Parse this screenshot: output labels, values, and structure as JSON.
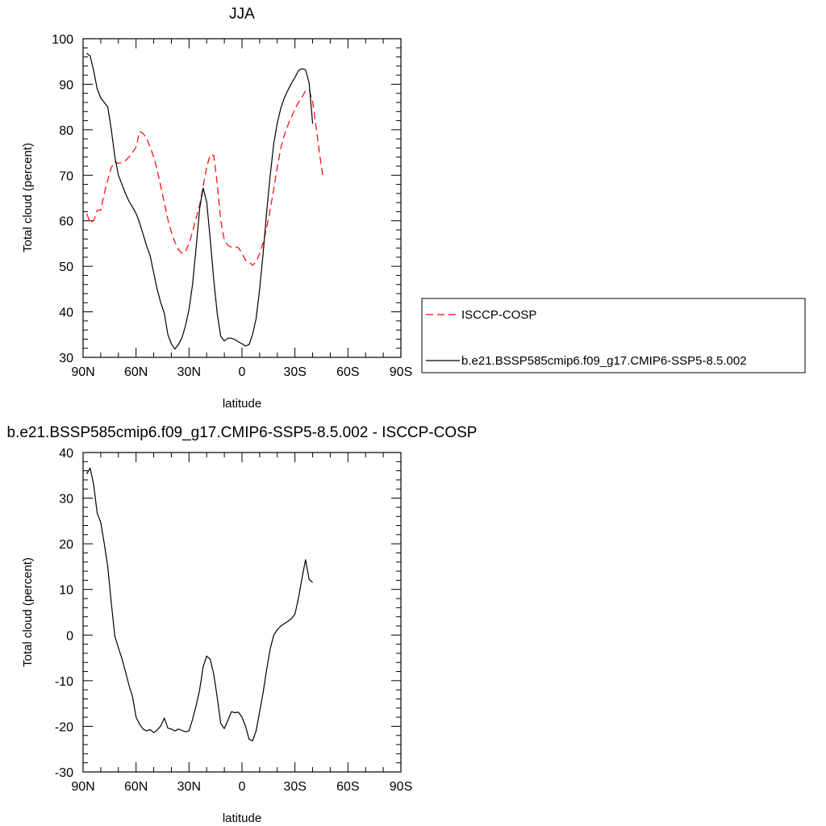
{
  "chart_data": [
    {
      "type": "line",
      "title": "JJA",
      "xlabel": "latitude",
      "ylabel": "Total cloud (percent)",
      "xlim": [
        90,
        -90
      ],
      "ylim": [
        30,
        100
      ],
      "x_ticks": [
        90,
        60,
        30,
        0,
        -30,
        -60,
        -90
      ],
      "x_tick_labels": [
        "90N",
        "60N",
        "30N",
        "0",
        "30S",
        "60S",
        "90S"
      ],
      "y_ticks": [
        30,
        40,
        50,
        60,
        70,
        80,
        90,
        100
      ],
      "y_tick_labels": [
        "30",
        "40",
        "50",
        "60",
        "70",
        "80",
        "90",
        "100"
      ],
      "grid": false,
      "legend_placement": "right",
      "series": [
        {
          "name": "ISCCP-COSP",
          "color": "#ff0000",
          "dash": "dashed",
          "points": [
            [
              88,
              61.6
            ],
            [
              86,
              59.6
            ],
            [
              84,
              60
            ],
            [
              82,
              62.3
            ],
            [
              80,
              62.3
            ],
            [
              78,
              66
            ],
            [
              76,
              69
            ],
            [
              74,
              71.7
            ],
            [
              72,
              73
            ],
            [
              70,
              72.6
            ],
            [
              68,
              72.8
            ],
            [
              66,
              73.2
            ],
            [
              64,
              74
            ],
            [
              62,
              75
            ],
            [
              60,
              76.2
            ],
            [
              58,
              79.6
            ],
            [
              56,
              79.2
            ],
            [
              54,
              78.1
            ],
            [
              52,
              76.2
            ],
            [
              50,
              74
            ],
            [
              48,
              71.2
            ],
            [
              46,
              67.5
            ],
            [
              44,
              64
            ],
            [
              42,
              60.3
            ],
            [
              40,
              57.5
            ],
            [
              38,
              55.3
            ],
            [
              36,
              53.7
            ],
            [
              34,
              52.8
            ],
            [
              32,
              53.3
            ],
            [
              30,
              55
            ],
            [
              28,
              57.6
            ],
            [
              26,
              60.5
            ],
            [
              24,
              63.5
            ],
            [
              22,
              67.5
            ],
            [
              20,
              71.8
            ],
            [
              18,
              74.5
            ],
            [
              16,
              74.4
            ],
            [
              14,
              68
            ],
            [
              12,
              60
            ],
            [
              10,
              55.8
            ],
            [
              8,
              54.6
            ],
            [
              6,
              54.2
            ],
            [
              4,
              54.2
            ],
            [
              2,
              54.1
            ],
            [
              0,
              52.9
            ],
            [
              -2,
              51.3
            ],
            [
              -4,
              51
            ],
            [
              -6,
              50.2
            ],
            [
              -8,
              51
            ],
            [
              -10,
              52.8
            ],
            [
              -12,
              55.2
            ],
            [
              -14,
              58.5
            ],
            [
              -16,
              62.5
            ],
            [
              -18,
              67
            ],
            [
              -20,
              71.8
            ],
            [
              -22,
              76
            ],
            [
              -24,
              78.8
            ],
            [
              -26,
              81
            ],
            [
              -28,
              82.8
            ],
            [
              -30,
              84.6
            ],
            [
              -32,
              86
            ],
            [
              -34,
              87.2
            ],
            [
              -36,
              88.5
            ],
            [
              -38,
              88.8
            ],
            [
              -40,
              86.2
            ],
            [
              -42,
              80.5
            ],
            [
              -44,
              74.5
            ],
            [
              -46,
              69.4
            ]
          ]
        },
        {
          "name": "b.e21.BSSP585cmip6.f09_g17.CMIP6-SSP5-8.5.002",
          "color": "#000000",
          "dash": "solid",
          "points": [
            [
              88,
              96.8
            ],
            [
              86,
              96.2
            ],
            [
              84,
              93
            ],
            [
              82,
              89
            ],
            [
              80,
              87
            ],
            [
              78,
              86
            ],
            [
              76,
              85
            ],
            [
              74,
              80
            ],
            [
              72,
              74
            ],
            [
              70,
              70
            ],
            [
              68,
              68
            ],
            [
              66,
              66
            ],
            [
              64,
              64.3
            ],
            [
              62,
              63
            ],
            [
              60,
              61.6
            ],
            [
              58,
              59.6
            ],
            [
              56,
              57
            ],
            [
              54,
              54.5
            ],
            [
              52,
              52.3
            ],
            [
              50,
              48.5
            ],
            [
              48,
              44.9
            ],
            [
              46,
              42
            ],
            [
              44,
              39.7
            ],
            [
              42,
              35
            ],
            [
              40,
              33
            ],
            [
              38,
              31.8
            ],
            [
              36,
              32.8
            ],
            [
              34,
              34.3
            ],
            [
              32,
              37
            ],
            [
              30,
              40.5
            ],
            [
              28,
              46
            ],
            [
              26,
              54
            ],
            [
              24,
              62.7
            ],
            [
              22,
              67.2
            ],
            [
              20,
              64.2
            ],
            [
              18,
              56
            ],
            [
              16,
              47
            ],
            [
              14,
              39.5
            ],
            [
              12,
              34.6
            ],
            [
              10,
              33.6
            ],
            [
              8,
              34.2
            ],
            [
              6,
              34.2
            ],
            [
              4,
              33.9
            ],
            [
              2,
              33.4
            ],
            [
              0,
              33
            ],
            [
              -2,
              32.5
            ],
            [
              -4,
              32.8
            ],
            [
              -6,
              35
            ],
            [
              -8,
              38.5
            ],
            [
              -10,
              45
            ],
            [
              -12,
              53
            ],
            [
              -14,
              62
            ],
            [
              -16,
              70
            ],
            [
              -18,
              77
            ],
            [
              -20,
              81.5
            ],
            [
              -22,
              84.8
            ],
            [
              -24,
              87
            ],
            [
              -26,
              88.7
            ],
            [
              -28,
              90.2
            ],
            [
              -30,
              91.5
            ],
            [
              -32,
              93
            ],
            [
              -34,
              93.4
            ],
            [
              -36,
              93.2
            ],
            [
              -38,
              90.3
            ],
            [
              -40,
              81.3
            ]
          ]
        }
      ]
    },
    {
      "type": "line",
      "title": "b.e21.BSSP585cmip6.f09_g17.CMIP6-SSP5-8.5.002 - ISCCP-COSP",
      "xlabel": "latitude",
      "ylabel": "Total cloud (percent)",
      "xlim": [
        90,
        -90
      ],
      "ylim": [
        -30,
        40
      ],
      "x_ticks": [
        90,
        60,
        30,
        0,
        -30,
        -60,
        -90
      ],
      "x_tick_labels": [
        "90N",
        "60N",
        "30N",
        "0",
        "30S",
        "60S",
        "90S"
      ],
      "y_ticks": [
        -30,
        -20,
        -10,
        0,
        10,
        20,
        30,
        40
      ],
      "y_tick_labels": [
        "-30",
        "-20",
        "-10",
        "0",
        "10",
        "20",
        "30",
        "40"
      ],
      "grid": false,
      "series": [
        {
          "color": "#000000",
          "dash": "solid",
          "points": [
            [
              88,
              35.3
            ],
            [
              86,
              36.6
            ],
            [
              84,
              33
            ],
            [
              82,
              26.7
            ],
            [
              80,
              24.7
            ],
            [
              78,
              20
            ],
            [
              76,
              15
            ],
            [
              74,
              7
            ],
            [
              72,
              -0.3
            ],
            [
              70,
              -2.8
            ],
            [
              68,
              -5.2
            ],
            [
              66,
              -8
            ],
            [
              64,
              -11
            ],
            [
              62,
              -13.5
            ],
            [
              60,
              -18
            ],
            [
              58,
              -19.5
            ],
            [
              56,
              -20.6
            ],
            [
              54,
              -21
            ],
            [
              52,
              -20.7
            ],
            [
              50,
              -21.4
            ],
            [
              48,
              -20.8
            ],
            [
              46,
              -19.9
            ],
            [
              44,
              -18.2
            ],
            [
              42,
              -20.4
            ],
            [
              40,
              -20.6
            ],
            [
              38,
              -21
            ],
            [
              36,
              -20.6
            ],
            [
              34,
              -20.9
            ],
            [
              32,
              -21.2
            ],
            [
              30,
              -21
            ],
            [
              28,
              -18.5
            ],
            [
              26,
              -15.5
            ],
            [
              24,
              -12
            ],
            [
              22,
              -7
            ],
            [
              20,
              -4.6
            ],
            [
              18,
              -5.3
            ],
            [
              16,
              -8.6
            ],
            [
              14,
              -13.8
            ],
            [
              12,
              -19.4
            ],
            [
              10,
              -20.5
            ],
            [
              8,
              -18.7
            ],
            [
              6,
              -16.8
            ],
            [
              4,
              -17
            ],
            [
              2,
              -16.9
            ],
            [
              0,
              -18
            ],
            [
              -2,
              -20
            ],
            [
              -4,
              -22.8
            ],
            [
              -6,
              -23.2
            ],
            [
              -8,
              -21
            ],
            [
              -10,
              -16.8
            ],
            [
              -12,
              -12.5
            ],
            [
              -14,
              -7.5
            ],
            [
              -16,
              -3
            ],
            [
              -18,
              0
            ],
            [
              -20,
              1.2
            ],
            [
              -22,
              2
            ],
            [
              -24,
              2.5
            ],
            [
              -26,
              3
            ],
            [
              -28,
              3.6
            ],
            [
              -30,
              4.6
            ],
            [
              -32,
              8.1
            ],
            [
              -34,
              12.5
            ],
            [
              -36,
              16.5
            ],
            [
              -38,
              12.2
            ],
            [
              -40,
              11.5
            ]
          ]
        }
      ]
    }
  ]
}
